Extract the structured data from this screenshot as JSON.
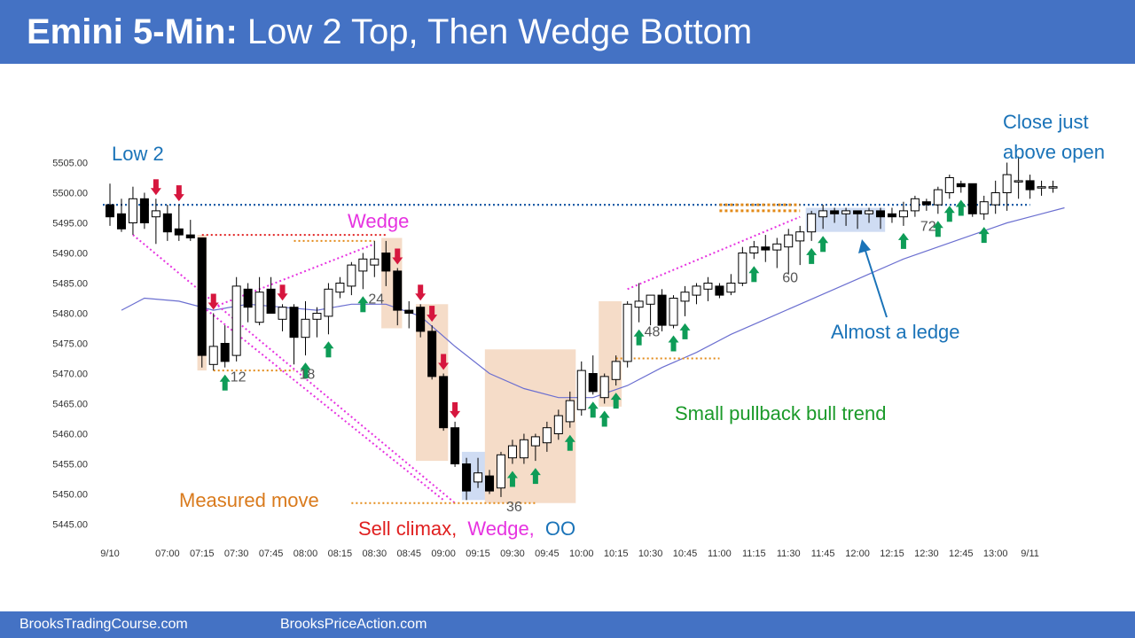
{
  "header": {
    "title_bold": "Emini 5-Min:",
    "title_rest": " Low 2 Top, Then Wedge Bottom",
    "background": "#4472c4"
  },
  "footer": {
    "left_text": "BrooksTradingCourse.com",
    "right_text": "BrooksPriceAction.com"
  },
  "chart_data": {
    "type": "candlestick",
    "title": "Emini 5-Min: Low 2 Top, Then Wedge Bottom",
    "ylim": [
      5443,
      5508
    ],
    "y_ticks": [
      "5445.00",
      "5450.00",
      "5455.00",
      "5460.00",
      "5465.00",
      "5470.00",
      "5475.00",
      "5480.00",
      "5485.00",
      "5490.00",
      "5495.00",
      "5500.00",
      "5505.00"
    ],
    "y_tick_values": [
      5445,
      5450,
      5455,
      5460,
      5465,
      5470,
      5475,
      5480,
      5485,
      5490,
      5495,
      5500,
      5505
    ],
    "x_ticks": [
      {
        "bar": 0,
        "label": "9/10"
      },
      {
        "bar": 5,
        "label": "07:00"
      },
      {
        "bar": 8,
        "label": "07:15"
      },
      {
        "bar": 11,
        "label": "07:30"
      },
      {
        "bar": 14,
        "label": "07:45"
      },
      {
        "bar": 17,
        "label": "08:00"
      },
      {
        "bar": 20,
        "label": "08:15"
      },
      {
        "bar": 23,
        "label": "08:30"
      },
      {
        "bar": 26,
        "label": "08:45"
      },
      {
        "bar": 29,
        "label": "09:00"
      },
      {
        "bar": 32,
        "label": "09:15"
      },
      {
        "bar": 35,
        "label": "09:30"
      },
      {
        "bar": 38,
        "label": "09:45"
      },
      {
        "bar": 41,
        "label": "10:00"
      },
      {
        "bar": 44,
        "label": "10:15"
      },
      {
        "bar": 47,
        "label": "10:30"
      },
      {
        "bar": 50,
        "label": "10:45"
      },
      {
        "bar": 53,
        "label": "11:00"
      },
      {
        "bar": 56,
        "label": "11:15"
      },
      {
        "bar": 59,
        "label": "11:30"
      },
      {
        "bar": 62,
        "label": "11:45"
      },
      {
        "bar": 65,
        "label": "12:00"
      },
      {
        "bar": 68,
        "label": "12:15"
      },
      {
        "bar": 71,
        "label": "12:30"
      },
      {
        "bar": 74,
        "label": "12:45"
      },
      {
        "bar": 77,
        "label": "13:00"
      },
      {
        "bar": 80,
        "label": "9/11"
      }
    ],
    "bars": [
      {
        "o": 5498,
        "h": 5501.5,
        "l": 5494.5,
        "c": 5496
      },
      {
        "o": 5496.5,
        "h": 5499,
        "l": 5493.5,
        "c": 5494
      },
      {
        "o": 5495,
        "h": 5501,
        "l": 5493,
        "c": 5499
      },
      {
        "o": 5499,
        "h": 5500,
        "l": 5494,
        "c": 5495
      },
      {
        "o": 5496,
        "h": 5499,
        "l": 5491.5,
        "c": 5497
      },
      {
        "o": 5496.5,
        "h": 5498,
        "l": 5492,
        "c": 5493.5
      },
      {
        "o": 5494,
        "h": 5498,
        "l": 5492,
        "c": 5493
      },
      {
        "o": 5493,
        "h": 5495.5,
        "l": 5492,
        "c": 5492.5
      },
      {
        "o": 5492.5,
        "h": 5492.5,
        "l": 5471,
        "c": 5473
      },
      {
        "o": 5471.5,
        "h": 5480,
        "l": 5470.5,
        "c": 5474.5
      },
      {
        "o": 5475,
        "h": 5478,
        "l": 5471,
        "c": 5472
      },
      {
        "o": 5473,
        "h": 5486,
        "l": 5472,
        "c": 5484.5
      },
      {
        "o": 5484,
        "h": 5485,
        "l": 5478.5,
        "c": 5481
      },
      {
        "o": 5478.5,
        "h": 5486,
        "l": 5478,
        "c": 5483.5
      },
      {
        "o": 5484,
        "h": 5486,
        "l": 5480,
        "c": 5480
      },
      {
        "o": 5479,
        "h": 5481.5,
        "l": 5477,
        "c": 5481
      },
      {
        "o": 5481,
        "h": 5481.5,
        "l": 5471.5,
        "c": 5476
      },
      {
        "o": 5476,
        "h": 5482,
        "l": 5473,
        "c": 5479
      },
      {
        "o": 5479,
        "h": 5481,
        "l": 5476,
        "c": 5480
      },
      {
        "o": 5479.5,
        "h": 5485,
        "l": 5476.5,
        "c": 5484
      },
      {
        "o": 5483.5,
        "h": 5486,
        "l": 5482.5,
        "c": 5485
      },
      {
        "o": 5484.5,
        "h": 5488.5,
        "l": 5483,
        "c": 5488
      },
      {
        "o": 5487,
        "h": 5490,
        "l": 5484,
        "c": 5489
      },
      {
        "o": 5488,
        "h": 5492,
        "l": 5486,
        "c": 5489
      },
      {
        "o": 5490,
        "h": 5492,
        "l": 5484.5,
        "c": 5487
      },
      {
        "o": 5487,
        "h": 5487.5,
        "l": 5478,
        "c": 5480.5
      },
      {
        "o": 5480.5,
        "h": 5482,
        "l": 5477.5,
        "c": 5480
      },
      {
        "o": 5481,
        "h": 5481.5,
        "l": 5476,
        "c": 5477
      },
      {
        "o": 5477,
        "h": 5478,
        "l": 5469,
        "c": 5469.5
      },
      {
        "o": 5469.5,
        "h": 5470,
        "l": 5460.5,
        "c": 5461
      },
      {
        "o": 5461,
        "h": 5462,
        "l": 5454.5,
        "c": 5455
      },
      {
        "o": 5455,
        "h": 5456,
        "l": 5449,
        "c": 5450.5
      },
      {
        "o": 5452,
        "h": 5456,
        "l": 5451,
        "c": 5453.5
      },
      {
        "o": 5453,
        "h": 5454,
        "l": 5450,
        "c": 5450.5
      },
      {
        "o": 5451,
        "h": 5457,
        "l": 5449.5,
        "c": 5456.5
      },
      {
        "o": 5456,
        "h": 5459,
        "l": 5455,
        "c": 5458
      },
      {
        "o": 5456,
        "h": 5460,
        "l": 5455,
        "c": 5459
      },
      {
        "o": 5458,
        "h": 5460,
        "l": 5455.5,
        "c": 5459.5
      },
      {
        "o": 5458.5,
        "h": 5462,
        "l": 5457,
        "c": 5461
      },
      {
        "o": 5460,
        "h": 5464,
        "l": 5459,
        "c": 5463
      },
      {
        "o": 5462,
        "h": 5467,
        "l": 5461,
        "c": 5465.5
      },
      {
        "o": 5464,
        "h": 5472,
        "l": 5463,
        "c": 5470.5
      },
      {
        "o": 5470,
        "h": 5473,
        "l": 5466.5,
        "c": 5467
      },
      {
        "o": 5466,
        "h": 5470,
        "l": 5465,
        "c": 5469.5
      },
      {
        "o": 5469,
        "h": 5473,
        "l": 5468,
        "c": 5472
      },
      {
        "o": 5472,
        "h": 5482,
        "l": 5471,
        "c": 5481.5
      },
      {
        "o": 5481,
        "h": 5485,
        "l": 5478.5,
        "c": 5482
      },
      {
        "o": 5481.5,
        "h": 5483,
        "l": 5478,
        "c": 5483
      },
      {
        "o": 5483,
        "h": 5484,
        "l": 5477,
        "c": 5478
      },
      {
        "o": 5478,
        "h": 5483,
        "l": 5477.5,
        "c": 5482.5
      },
      {
        "o": 5482,
        "h": 5484.5,
        "l": 5479.5,
        "c": 5483.5
      },
      {
        "o": 5483,
        "h": 5485,
        "l": 5481.5,
        "c": 5484.5
      },
      {
        "o": 5484,
        "h": 5486,
        "l": 5482,
        "c": 5485
      },
      {
        "o": 5484.5,
        "h": 5485,
        "l": 5482.5,
        "c": 5483
      },
      {
        "o": 5483.5,
        "h": 5486.5,
        "l": 5483,
        "c": 5485
      },
      {
        "o": 5485,
        "h": 5491,
        "l": 5484.5,
        "c": 5490
      },
      {
        "o": 5490,
        "h": 5492,
        "l": 5489,
        "c": 5491
      },
      {
        "o": 5491,
        "h": 5493,
        "l": 5488.5,
        "c": 5490.5
      },
      {
        "o": 5490.5,
        "h": 5492.5,
        "l": 5487.5,
        "c": 5491.5
      },
      {
        "o": 5491,
        "h": 5494,
        "l": 5486.5,
        "c": 5493
      },
      {
        "o": 5492,
        "h": 5494.5,
        "l": 5488,
        "c": 5493.5
      },
      {
        "o": 5493.5,
        "h": 5497,
        "l": 5492,
        "c": 5496.5
      },
      {
        "o": 5496,
        "h": 5498,
        "l": 5494,
        "c": 5497
      },
      {
        "o": 5497,
        "h": 5497.5,
        "l": 5495,
        "c": 5496.5
      },
      {
        "o": 5496.5,
        "h": 5497.5,
        "l": 5494.5,
        "c": 5497
      },
      {
        "o": 5497,
        "h": 5497,
        "l": 5494,
        "c": 5496.5
      },
      {
        "o": 5496.5,
        "h": 5497.5,
        "l": 5495,
        "c": 5497
      },
      {
        "o": 5497,
        "h": 5497.5,
        "l": 5494,
        "c": 5496
      },
      {
        "o": 5496.5,
        "h": 5497.5,
        "l": 5495,
        "c": 5496
      },
      {
        "o": 5496,
        "h": 5498.5,
        "l": 5494.5,
        "c": 5497
      },
      {
        "o": 5497,
        "h": 5499.5,
        "l": 5496,
        "c": 5499
      },
      {
        "o": 5498.5,
        "h": 5499,
        "l": 5497,
        "c": 5498
      },
      {
        "o": 5498,
        "h": 5501,
        "l": 5496.5,
        "c": 5500.5
      },
      {
        "o": 5500,
        "h": 5503,
        "l": 5499,
        "c": 5502.5
      },
      {
        "o": 5501.5,
        "h": 5502,
        "l": 5500,
        "c": 5501
      },
      {
        "o": 5501.5,
        "h": 5501.5,
        "l": 5496,
        "c": 5496.5
      },
      {
        "o": 5496.5,
        "h": 5499.5,
        "l": 5495.5,
        "c": 5498.5
      },
      {
        "o": 5498,
        "h": 5502,
        "l": 5496.5,
        "c": 5500
      },
      {
        "o": 5500,
        "h": 5505,
        "l": 5497,
        "c": 5503
      },
      {
        "o": 5502,
        "h": 5506,
        "l": 5499,
        "c": 5502
      },
      {
        "o": 5502,
        "h": 5503,
        "l": 5499,
        "c": 5500.5
      },
      {
        "o": 5501,
        "h": 5502,
        "l": 5499.5,
        "c": 5501
      },
      {
        "o": 5501,
        "h": 5502,
        "l": 5500,
        "c": 5501
      }
    ],
    "ema": [
      {
        "bar": 1,
        "v": 5480.5
      },
      {
        "bar": 3,
        "v": 5482.5
      },
      {
        "bar": 6,
        "v": 5482
      },
      {
        "bar": 9,
        "v": 5480.5
      },
      {
        "bar": 12,
        "v": 5481.5
      },
      {
        "bar": 15,
        "v": 5481
      },
      {
        "bar": 18,
        "v": 5480.5
      },
      {
        "bar": 21,
        "v": 5481.5
      },
      {
        "bar": 24,
        "v": 5481.5
      },
      {
        "bar": 27,
        "v": 5479.5
      },
      {
        "bar": 30,
        "v": 5474.5
      },
      {
        "bar": 33,
        "v": 5470
      },
      {
        "bar": 36,
        "v": 5467.5
      },
      {
        "bar": 39,
        "v": 5466
      },
      {
        "bar": 42,
        "v": 5466
      },
      {
        "bar": 45,
        "v": 5468
      },
      {
        "bar": 48,
        "v": 5471
      },
      {
        "bar": 51,
        "v": 5473.5
      },
      {
        "bar": 54,
        "v": 5476.5
      },
      {
        "bar": 57,
        "v": 5479
      },
      {
        "bar": 60,
        "v": 5481.5
      },
      {
        "bar": 63,
        "v": 5484
      },
      {
        "bar": 66,
        "v": 5486.5
      },
      {
        "bar": 69,
        "v": 5489
      },
      {
        "bar": 72,
        "v": 5491
      },
      {
        "bar": 75,
        "v": 5493
      },
      {
        "bar": 78,
        "v": 5495
      },
      {
        "bar": 81,
        "v": 5496.5
      },
      {
        "bar": 83,
        "v": 5497.5
      }
    ],
    "open_line": 5498,
    "bar_numbers": [
      {
        "bar": 10,
        "label": "12"
      },
      {
        "bar": 16,
        "label": "18"
      },
      {
        "bar": 22,
        "label": "24"
      },
      {
        "bar": 34,
        "label": "36"
      },
      {
        "bar": 46,
        "label": "48"
      },
      {
        "bar": 58,
        "label": "60"
      },
      {
        "bar": 70,
        "label": "72"
      }
    ],
    "annotations": {
      "low2": "Low 2",
      "wedge": "Wedge",
      "measured_move": "Measured move",
      "sell_climax": "Sell climax,",
      "sell_wedge": "Wedge,",
      "sell_oo": "OO",
      "small_pullback": "Small pullback bull trend",
      "almost_ledge": "Almost a ledge",
      "close_line1": "Close just",
      "close_line2": "above open"
    },
    "colors": {
      "bull_arrow": "#0e9c57",
      "bear_arrow": "#d6163e",
      "ema": "#6b6fd0",
      "open_line": "#1f5fa8",
      "measured": "#e38a17",
      "wedge": "#e633e0",
      "red_dotted": "#e02020",
      "box_orange": "#f5dcc8",
      "box_blue": "#cfdcf3",
      "blue_text": "#1a73b8",
      "green_text": "#1b9a2a",
      "orange_text": "#d97a1c",
      "red_text": "#e02020",
      "magenta_text": "#e633e0"
    }
  }
}
